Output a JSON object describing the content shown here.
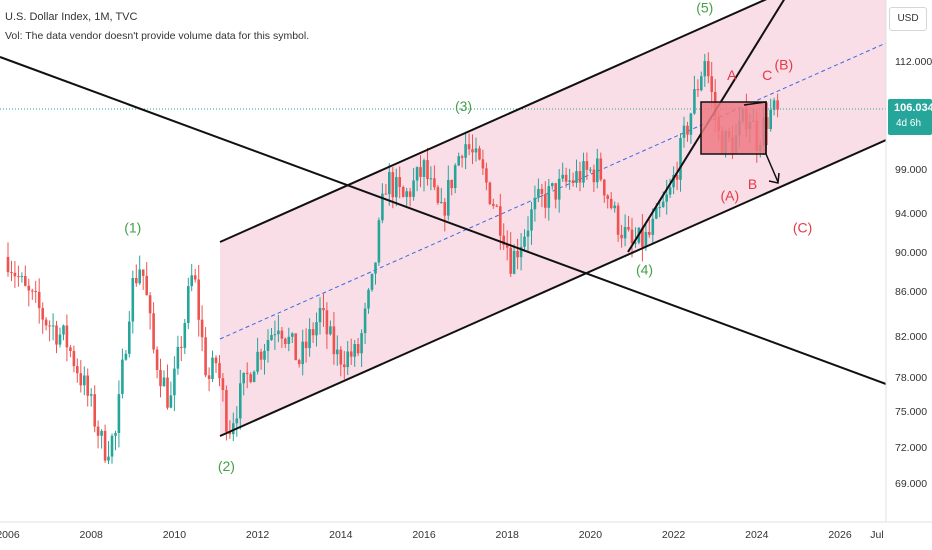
{
  "header": {
    "title": "U.S. Dollar Index, 1M, TVC",
    "volume_note": "Vol: The data vendor doesn't provide volume data for this symbol."
  },
  "currency_button": "USD",
  "price_tag": {
    "value": "106.034",
    "countdown": "4d 6h",
    "color": "#26a69a"
  },
  "colors": {
    "up": "#26a69a",
    "down": "#ef5350",
    "channel": "#f8d7e3",
    "box": "#ef7a84",
    "wave_main": "#43a047",
    "wave_corr": "#e53946",
    "midline": "#3d6be0"
  },
  "chart_data": {
    "type": "candlestick",
    "y_ticks": [
      "112.000",
      "106.000",
      "99.000",
      "94.000",
      "90.000",
      "86.000",
      "82.000",
      "78.000",
      "75.000",
      "72.000",
      "69.000"
    ],
    "y_scale": "log",
    "x_ticks": [
      "2006",
      "2008",
      "2010",
      "2012",
      "2014",
      "2016",
      "2018",
      "2020",
      "2022",
      "2024",
      "2026",
      "Jul"
    ],
    "xlim": [
      2006.0,
      2027.4
    ],
    "ylim": [
      66.0,
      118.0
    ],
    "last_price": 106.034,
    "wave_labels": [
      {
        "text": "(1)",
        "x": 2009.0,
        "y": 92.5,
        "kind": "main"
      },
      {
        "text": "(2)",
        "x": 2011.25,
        "y": 70.4,
        "kind": "main"
      },
      {
        "text": "(3)",
        "x": 2016.95,
        "y": 106.5,
        "kind": "main"
      },
      {
        "text": "(4)",
        "x": 2021.3,
        "y": 88.2,
        "kind": "main"
      },
      {
        "text": "(5)",
        "x": 2022.75,
        "y": 118.5,
        "kind": "main"
      },
      {
        "text": "A",
        "x": 2023.4,
        "y": 110.3,
        "kind": "corr"
      },
      {
        "text": "B",
        "x": 2023.9,
        "y": 97.3,
        "kind": "corr"
      },
      {
        "text": "C",
        "x": 2024.25,
        "y": 110.3,
        "kind": "corr"
      },
      {
        "text": "(A)",
        "x": 2023.35,
        "y": 96.0,
        "kind": "corr"
      },
      {
        "text": "(B)",
        "x": 2024.65,
        "y": 111.6,
        "kind": "corr"
      },
      {
        "text": "(C)",
        "x": 2025.1,
        "y": 92.5,
        "kind": "corr"
      }
    ],
    "series": [
      {
        "name": "",
        "segments": [
          {
            "t": 2006.0,
            "v": 89.5
          },
          {
            "t": 2006.4,
            "v": 86.0
          },
          {
            "t": 2006.9,
            "v": 83.5
          },
          {
            "t": 2007.4,
            "v": 81.5
          },
          {
            "t": 2007.9,
            "v": 76.5
          },
          {
            "t": 2008.3,
            "v": 71.8
          },
          {
            "t": 2008.6,
            "v": 73.0
          },
          {
            "t": 2008.95,
            "v": 86.0
          },
          {
            "t": 2009.2,
            "v": 89.0
          },
          {
            "t": 2009.5,
            "v": 80.5
          },
          {
            "t": 2009.9,
            "v": 75.5
          },
          {
            "t": 2010.45,
            "v": 88.0
          },
          {
            "t": 2010.8,
            "v": 77.5
          },
          {
            "t": 2011.0,
            "v": 79.5
          },
          {
            "t": 2011.3,
            "v": 73.5
          },
          {
            "t": 2011.9,
            "v": 79.5
          },
          {
            "t": 2012.5,
            "v": 83.5
          },
          {
            "t": 2013.0,
            "v": 79.5
          },
          {
            "t": 2013.5,
            "v": 84.0
          },
          {
            "t": 2013.9,
            "v": 80.0
          },
          {
            "t": 2014.4,
            "v": 80.2
          },
          {
            "t": 2014.75,
            "v": 86.5
          },
          {
            "t": 2015.1,
            "v": 98.0
          },
          {
            "t": 2015.5,
            "v": 95.5
          },
          {
            "t": 2016.0,
            "v": 99.0
          },
          {
            "t": 2016.4,
            "v": 93.5
          },
          {
            "t": 2016.95,
            "v": 102.5
          },
          {
            "t": 2017.4,
            "v": 98.5
          },
          {
            "t": 2017.9,
            "v": 92.5
          },
          {
            "t": 2018.1,
            "v": 89.0
          },
          {
            "t": 2018.7,
            "v": 95.0
          },
          {
            "t": 2019.3,
            "v": 97.0
          },
          {
            "t": 2019.75,
            "v": 98.3
          },
          {
            "t": 2020.2,
            "v": 99.0
          },
          {
            "t": 2020.6,
            "v": 93.5
          },
          {
            "t": 2021.0,
            "v": 90.5
          },
          {
            "t": 2021.4,
            "v": 91.5
          },
          {
            "t": 2021.9,
            "v": 96.0
          },
          {
            "t": 2022.3,
            "v": 103.5
          },
          {
            "t": 2022.75,
            "v": 112.5
          },
          {
            "t": 2023.1,
            "v": 102.5
          },
          {
            "t": 2023.45,
            "v": 102.0
          },
          {
            "t": 2023.8,
            "v": 106.0
          },
          {
            "t": 2024.0,
            "v": 102.5
          },
          {
            "t": 2024.3,
            "v": 105.5
          },
          {
            "t": 2024.55,
            "v": 106.034
          }
        ]
      }
    ]
  }
}
